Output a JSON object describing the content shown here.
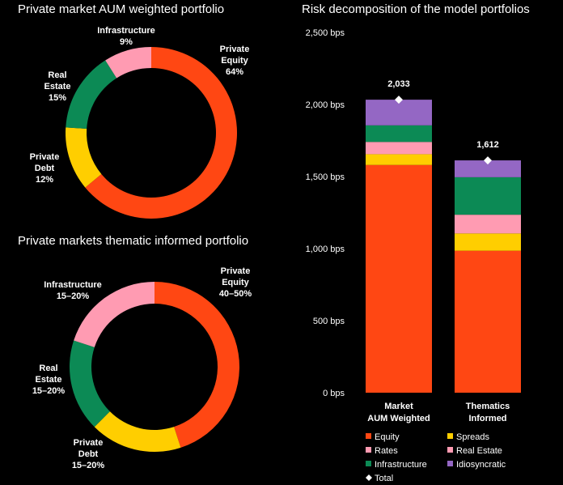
{
  "colors": {
    "background": "#000000",
    "equity": "#ff4713",
    "debt_spreads": "#ffce00",
    "real_estate": "#ff9bb2",
    "rates": "#ff9bb2",
    "infrastructure": "#0c8a55",
    "idiosyncratic": "#9467c4",
    "text": "#ffffff"
  },
  "chart_data": [
    {
      "type": "pie",
      "title": "Private market AUM weighted portfolio",
      "slices": [
        {
          "label": "Private Equity",
          "value": 64,
          "value_label": "64%",
          "color": "#ff4713"
        },
        {
          "label": "Private Debt",
          "value": 12,
          "value_label": "12%",
          "color": "#ffce00"
        },
        {
          "label": "Real Estate",
          "value": 15,
          "value_label": "15%",
          "color": "#0c8a55"
        },
        {
          "label": "Infrastructure",
          "value": 9,
          "value_label": "9%",
          "color": "#ff9bb2"
        }
      ]
    },
    {
      "type": "pie",
      "title": "Private markets thematic informed portfolio",
      "slices": [
        {
          "label": "Private Equity",
          "value": 45,
          "value_label": "40–50%",
          "color": "#ff4713"
        },
        {
          "label": "Private Debt",
          "value": 17.5,
          "value_label": "15–20%",
          "color": "#ffce00"
        },
        {
          "label": "Real Estate",
          "value": 17.5,
          "value_label": "15–20%",
          "color": "#0c8a55"
        },
        {
          "label": "Infrastructure",
          "value": 20,
          "value_label": "15–20%",
          "color": "#ff9bb2"
        }
      ]
    },
    {
      "type": "bar",
      "stacked": true,
      "title": "Risk decomposition of the model portfolios",
      "categories": [
        "Market AUM Weighted",
        "Thematics Informed"
      ],
      "ylim": [
        0,
        2500
      ],
      "yticks": [
        0,
        500,
        1000,
        1500,
        2000,
        2500
      ],
      "ytick_labels": [
        "0 bps",
        "500 bps",
        "1,000 bps",
        "1,500 bps",
        "2,000 bps",
        "2,500 bps"
      ],
      "series": [
        {
          "name": "Equity",
          "color": "#ff4713",
          "values": [
            1580,
            985
          ]
        },
        {
          "name": "Spreads",
          "color": "#ffce00",
          "values": [
            75,
            120
          ]
        },
        {
          "name": "Rates",
          "color": "#ff9bb2",
          "values": [
            85,
            130
          ]
        },
        {
          "name": "Real Estate",
          "color": "#ff9bb2",
          "values": [
            0,
            0
          ]
        },
        {
          "name": "Infrastructure",
          "color": "#0c8a55",
          "values": [
            115,
            260
          ]
        },
        {
          "name": "Idiosyncratic",
          "color": "#9467c4",
          "values": [
            178,
            117
          ]
        }
      ],
      "totals": [
        2033,
        1612
      ],
      "total_labels": [
        "2,033",
        "1,612"
      ],
      "legend": {
        "position": "bottom",
        "entries": [
          {
            "label": "Equity",
            "color": "#ff4713",
            "marker": "square"
          },
          {
            "label": "Spreads",
            "color": "#ffce00",
            "marker": "square"
          },
          {
            "label": "Rates",
            "color": "#ff9bb2",
            "marker": "square"
          },
          {
            "label": "Real Estate",
            "color": "#ff9bb2",
            "marker": "square"
          },
          {
            "label": "Infrastructure",
            "color": "#0c8a55",
            "marker": "square"
          },
          {
            "label": "Idiosyncratic",
            "color": "#9467c4",
            "marker": "square"
          },
          {
            "label": "Total",
            "color": "#ffffff",
            "marker": "diamond"
          }
        ]
      }
    }
  ]
}
